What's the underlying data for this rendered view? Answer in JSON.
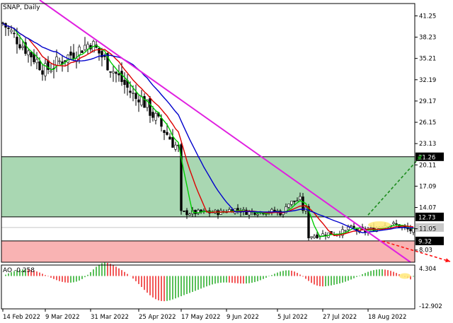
{
  "chart_data": [
    {
      "type": "candlestick",
      "title": "SNAP, Daily",
      "ylim": [
        6.3,
        43.0
      ],
      "y_ticks": [
        "41.25",
        "38.23",
        "35.21",
        "32.19",
        "29.17",
        "26.15",
        "23.13",
        "20.11",
        "17.09",
        "14.07",
        "11.05",
        "8.03"
      ],
      "y_tick_values": [
        41.25,
        38.23,
        35.21,
        32.19,
        29.17,
        26.15,
        23.13,
        20.11,
        17.09,
        14.07,
        11.05,
        8.03
      ],
      "x_ticks": [
        "14 Feb 2022",
        "9 Mar 2022",
        "31 Mar 2022",
        "25 Apr 2022",
        "17 May 2022",
        "9 Jun 2022",
        "5 Jul 2022",
        "27 Jul 2022",
        "18 Aug 2022"
      ],
      "x_tick_index": [
        0,
        15,
        31,
        48,
        63,
        79,
        97,
        113,
        129
      ],
      "n_bars": 146,
      "zones": [
        {
          "name": "green-zone",
          "from": 12.73,
          "to": 21.26,
          "color": "#a9d7b2"
        },
        {
          "name": "red-zone",
          "from": 6.3,
          "to": 9.32,
          "color": "#f9b3b3"
        }
      ],
      "levels": [
        {
          "value": 21.26,
          "label": "21.26",
          "color": "#000000",
          "bg": "#000000"
        },
        {
          "value": 12.73,
          "label": "12.73",
          "color": "#000000",
          "bg": "#000000"
        },
        {
          "value": 11.22,
          "label": "11.22",
          "color": "#c8c8c8",
          "bg": "#c8c8c8"
        },
        {
          "value": 9.32,
          "label": "9.32",
          "color": "#000000",
          "bg": "#000000"
        }
      ],
      "key_points": [
        {
          "date": "14 Feb 2022",
          "close": 40.2
        },
        {
          "date": "9 Mar 2022",
          "close": 33.5
        },
        {
          "date": "31 Mar 2022",
          "close": 37.5
        },
        {
          "date": "25 Apr 2022",
          "close": 29.0
        },
        {
          "date": "17 May 2022",
          "close": 13.3
        },
        {
          "date": "9 Jun 2022",
          "close": 13.4
        },
        {
          "date": "5 Jul 2022",
          "close": 13.5
        },
        {
          "date": "27 Jul 2022",
          "close": 10.2
        },
        {
          "date": "18 Aug 2022",
          "close": 11.8
        }
      ],
      "moving_averages": [
        {
          "color": "#00cc00",
          "period": "fast"
        },
        {
          "color": "#dd0000",
          "period": "medium"
        },
        {
          "color": "#0000cc",
          "period": "slow"
        }
      ],
      "trendline": {
        "color": "#e020e0",
        "from": {
          "index": 13,
          "value": 43.5
        },
        "to": {
          "index": 144,
          "value": 6.3
        }
      },
      "forecast_arrows": [
        {
          "direction": "up",
          "color": "#1a8a1a",
          "from": {
            "index": 129,
            "value": 13.0
          },
          "to": {
            "index": 148,
            "value": 21.5
          }
        },
        {
          "direction": "down",
          "color": "#ff1111",
          "from": {
            "index": 134,
            "value": 9.3
          },
          "to": {
            "index": 158,
            "value": 6.4
          }
        }
      ],
      "grid": false
    },
    {
      "type": "bar",
      "title": "AO -0.258",
      "ylim": [
        -12.902,
        4.304
      ],
      "y_ticks": [
        "4.304",
        "-12.902"
      ],
      "y_tick_values": [
        4.304,
        -12.902
      ],
      "last_value": -0.258,
      "positive_color": "#22aa22",
      "negative_color": "#ee2222"
    }
  ]
}
